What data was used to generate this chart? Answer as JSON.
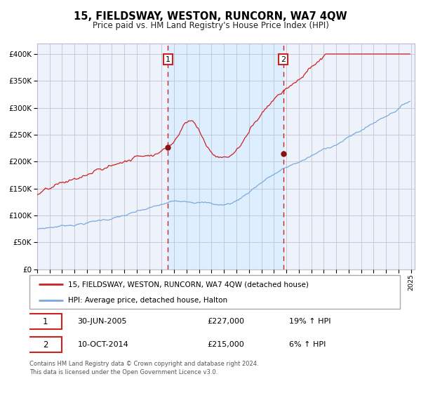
{
  "title": "15, FIELDSWAY, WESTON, RUNCORN, WA7 4QW",
  "subtitle": "Price paid vs. HM Land Registry's House Price Index (HPI)",
  "legend_line1": "15, FIELDSWAY, WESTON, RUNCORN, WA7 4QW (detached house)",
  "legend_line2": "HPI: Average price, detached house, Halton",
  "footer1": "Contains HM Land Registry data © Crown copyright and database right 2024.",
  "footer2": "This data is licensed under the Open Government Licence v3.0.",
  "transaction1_date": "30-JUN-2005",
  "transaction1_price": 227000,
  "transaction1_hpi": "19% ↑ HPI",
  "transaction2_date": "10-OCT-2014",
  "transaction2_price": 215000,
  "transaction2_hpi": "6% ↑ HPI",
  "hpi_color": "#7aaadd",
  "price_color": "#cc2222",
  "marker_color": "#881111",
  "shading_color": "#ddeeff",
  "chart_bg_color": "#eef2fb",
  "grid_color": "#bbbbcc",
  "transaction1_x": 2005.5,
  "transaction2_x": 2014.75,
  "ylim_min": 0,
  "ylim_max": 420000
}
